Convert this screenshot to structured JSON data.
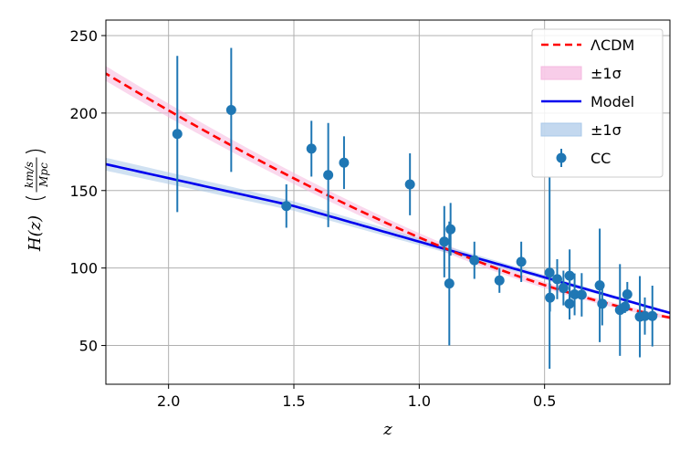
{
  "chart_data": {
    "type": "scatter",
    "xlabel": "z",
    "ylabel_main": "H(z)",
    "ylabel_unit_num": "km/s",
    "ylabel_unit_den": "Mpc",
    "x_axis_inverted": true,
    "xlim": [
      2.25,
      0.0
    ],
    "ylim": [
      25,
      260
    ],
    "xticks": [
      2.0,
      1.5,
      1.0,
      0.5
    ],
    "xtick_labels": [
      "2.0",
      "1.5",
      "1.0",
      "0.5"
    ],
    "yticks": [
      50,
      100,
      150,
      200,
      250
    ],
    "ytick_labels": [
      "50",
      "100",
      "150",
      "200",
      "250"
    ],
    "grid": true,
    "legend_placement": "top-right",
    "legend": [
      {
        "label": "ΛCDM",
        "kind": "dashed-line",
        "color": "#ff0000"
      },
      {
        "label": "±1σ",
        "kind": "band",
        "color": "#f5b8df"
      },
      {
        "label": "Model",
        "kind": "line",
        "color": "#0000ee"
      },
      {
        "label": "±1σ",
        "kind": "band",
        "color": "#a9c8e8"
      },
      {
        "label": "CC",
        "kind": "errorbar-point",
        "color": "#1f77b4"
      }
    ],
    "series": [
      {
        "name": "ΛCDM",
        "color": "#ff0000",
        "model": {
          "H0": 68,
          "Om": 0.3
        },
        "band_color": "#f5b8df"
      },
      {
        "name": "Model",
        "color": "#0000ee",
        "x": [
          0.0,
          0.5,
          1.0,
          1.5,
          2.25
        ],
        "y": [
          71,
          94,
          117,
          140,
          167
        ],
        "band_color": "#a9c8e8"
      },
      {
        "name": "CC",
        "color": "#1f77b4",
        "points": [
          {
            "x": 1.965,
            "y": 186.5,
            "err": 50.4
          },
          {
            "x": 1.75,
            "y": 202,
            "err": 40
          },
          {
            "x": 1.53,
            "y": 140,
            "err": 14
          },
          {
            "x": 1.43,
            "y": 177,
            "err": 18
          },
          {
            "x": 1.363,
            "y": 160,
            "err": 33.6
          },
          {
            "x": 1.3,
            "y": 168,
            "err": 17
          },
          {
            "x": 1.037,
            "y": 154,
            "err": 20
          },
          {
            "x": 0.9,
            "y": 117,
            "err": 23
          },
          {
            "x": 0.88,
            "y": 90,
            "err": 40
          },
          {
            "x": 0.875,
            "y": 125,
            "err": 17
          },
          {
            "x": 0.78,
            "y": 105,
            "err": 12
          },
          {
            "x": 0.68,
            "y": 92,
            "err": 8
          },
          {
            "x": 0.593,
            "y": 104,
            "err": 13
          },
          {
            "x": 0.48,
            "y": 97,
            "err": 62
          },
          {
            "x": 0.4783,
            "y": 80.9,
            "err": 9
          },
          {
            "x": 0.4497,
            "y": 92.8,
            "err": 12.9
          },
          {
            "x": 0.4247,
            "y": 87.1,
            "err": 11.2
          },
          {
            "x": 0.4004,
            "y": 77,
            "err": 10.2
          },
          {
            "x": 0.4,
            "y": 95,
            "err": 17
          },
          {
            "x": 0.3802,
            "y": 83,
            "err": 13.5
          },
          {
            "x": 0.3519,
            "y": 82.7,
            "err": 14
          },
          {
            "x": 0.28,
            "y": 88.8,
            "err": 36.6
          },
          {
            "x": 0.27,
            "y": 77,
            "err": 14
          },
          {
            "x": 0.1993,
            "y": 72.9,
            "err": 29.6
          },
          {
            "x": 0.1791,
            "y": 75,
            "err": 4
          },
          {
            "x": 0.17,
            "y": 83,
            "err": 8
          },
          {
            "x": 0.12,
            "y": 68.6,
            "err": 26.2
          },
          {
            "x": 0.1,
            "y": 69,
            "err": 12
          },
          {
            "x": 0.07,
            "y": 69,
            "err": 19.6
          }
        ]
      }
    ]
  }
}
